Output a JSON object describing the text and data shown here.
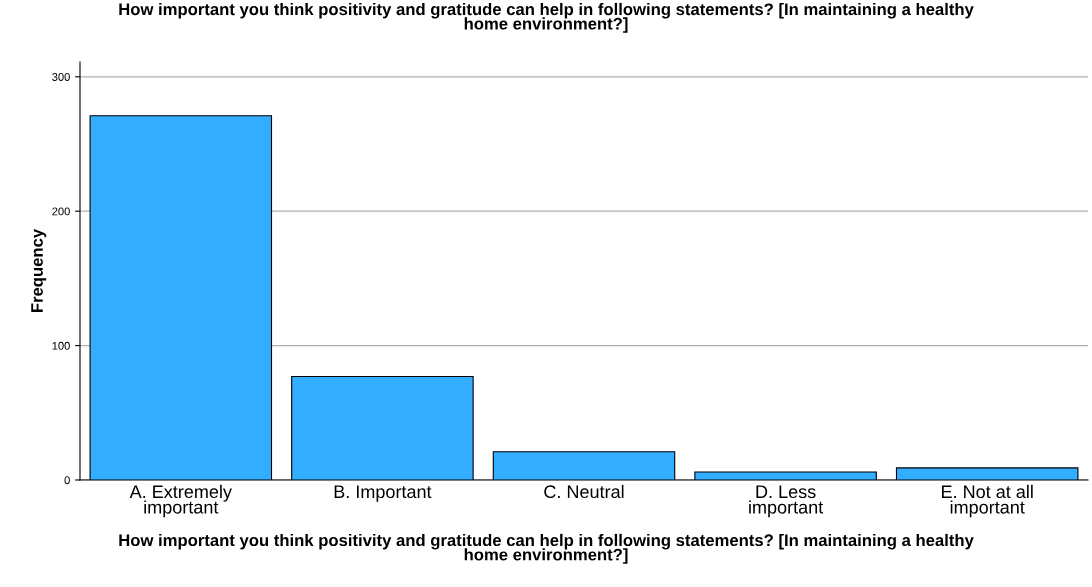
{
  "chart_data": {
    "type": "bar",
    "title": "How important you think positivity and gratitude can help in following statements? [In maintaining a healthy home environment?]",
    "xlabel": "How important you think positivity and gratitude can help in following statements? [In maintaining a healthy home environment?]",
    "ylabel": "Frequency",
    "categories": [
      "A. Extremely important",
      "B. Important",
      "C. Neutral",
      "D. Less important",
      "E. Not at all important"
    ],
    "values": [
      271,
      77,
      21,
      6,
      9
    ],
    "color": "#33adff",
    "ylim": [
      0,
      311
    ],
    "yticks": [
      0,
      100,
      200,
      300
    ],
    "grid": "y"
  }
}
